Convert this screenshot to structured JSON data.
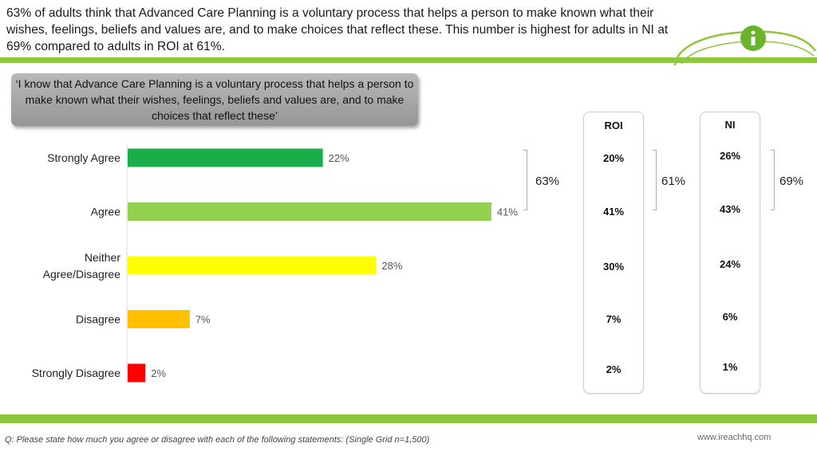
{
  "headline": "63% of adults think that Advanced Care Planning is a voluntary process that helps a person to make known what their wishes, feelings, beliefs and values are, and to make choices that reflect these. This number is highest for adults in NI at 69% compared to adults in ROI at 61%.",
  "quote": "‘I know that Advance Care Planning is a voluntary process that helps a person to make known what their wishes, feelings, beliefs and values are, and to make choices that reflect these’",
  "chart_data": {
    "type": "bar",
    "orientation": "horizontal",
    "categories": [
      "Strongly Agree",
      "Agree",
      "Neither Agree/Disagree",
      "Disagree",
      "Strongly Disagree"
    ],
    "values": [
      22,
      41,
      28,
      7,
      2
    ],
    "value_labels": [
      "22%",
      "41%",
      "28%",
      "7%",
      "2%"
    ],
    "colors": [
      "#1aae4b",
      "#92d050",
      "#ffff00",
      "#ffc000",
      "#ff0000"
    ],
    "xlim": [
      0,
      60
    ],
    "net_agree_label": "63%"
  },
  "panels": {
    "roi": {
      "title": "ROI",
      "values": [
        "20%",
        "41%",
        "30%",
        "7%",
        "2%"
      ],
      "net": "61%"
    },
    "ni": {
      "title": "NI",
      "values": [
        "26%",
        "43%",
        "24%",
        "6%",
        "1%"
      ],
      "net": "69%"
    }
  },
  "footnote": "Q: Please state how much you agree or disagree with each of the following statements: (Single Grid n=1,500)",
  "website": "www.ireachhq.com",
  "colors": {
    "accent": "#8dc63f"
  }
}
